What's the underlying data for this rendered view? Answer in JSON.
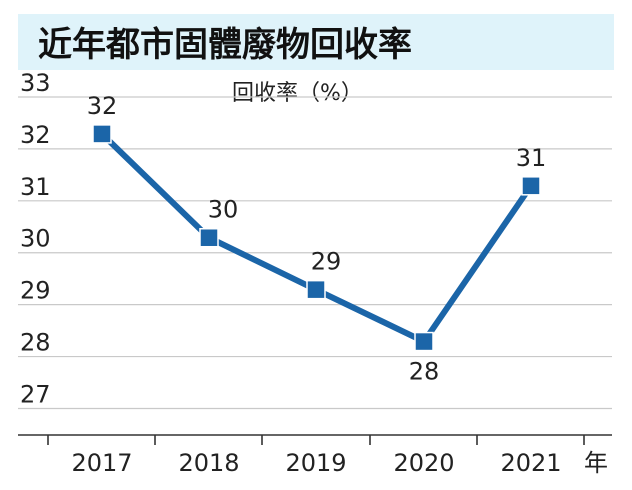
{
  "chart_data": {
    "type": "line",
    "title": "近年都市固體廢物回收率",
    "ylabel": "回收率（%）",
    "xlabel": "年",
    "categories": [
      "2017",
      "2018",
      "2019",
      "2020",
      "2021"
    ],
    "values": [
      32,
      30,
      29,
      28,
      31
    ],
    "y_ticks": [
      "33",
      "32",
      "31",
      "30",
      "29",
      "28",
      "27"
    ],
    "data_labels": [
      "32",
      "30",
      "29",
      "28",
      "31"
    ],
    "ylim": [
      26.2,
      33
    ],
    "grid": true,
    "colors": {
      "line": "#1b65a8",
      "title_band": "#dff3fa"
    }
  }
}
